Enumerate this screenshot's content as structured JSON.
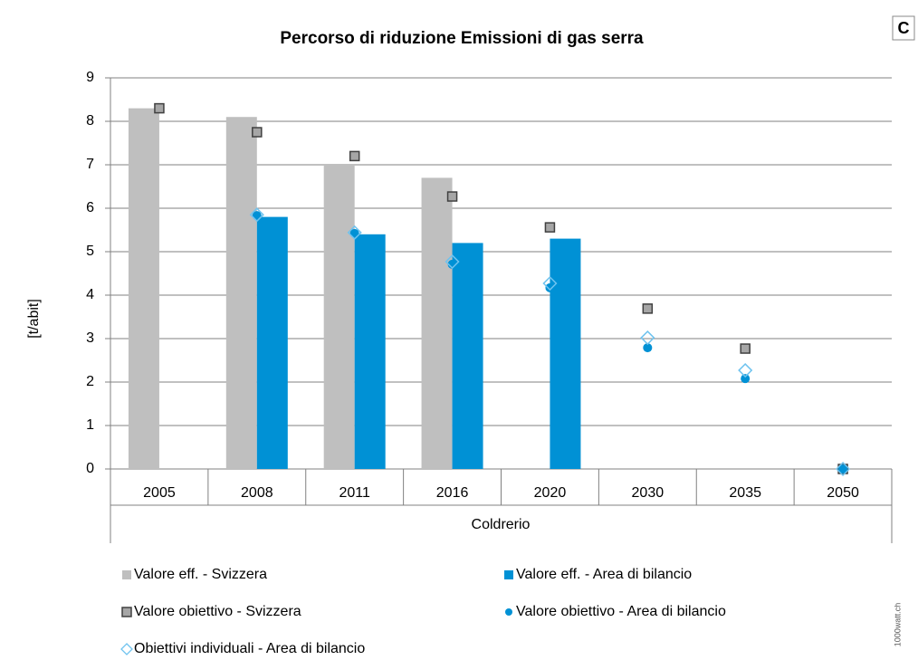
{
  "chart_data": {
    "type": "bar",
    "title": "Percorso di riduzione Emissioni di gas serra",
    "corner_label": "C",
    "watermark": "1000watt.ch",
    "y_label": "[t/abit]",
    "x_label": "Coldrerio",
    "categories": [
      "2005",
      "2008",
      "2011",
      "2016",
      "2020",
      "2030",
      "2035",
      "2050"
    ],
    "ylim": [
      0,
      9
    ],
    "yticks": [
      0,
      1,
      2,
      3,
      4,
      5,
      6,
      7,
      8,
      9
    ],
    "grid": true,
    "series": [
      {
        "name": "Valore eff. - Svizzera",
        "type": "bar",
        "color": "#bfbfbf",
        "values": [
          8.3,
          8.1,
          7.0,
          6.7,
          null,
          null,
          null,
          null
        ]
      },
      {
        "name": "Valore eff. - Area di bilancio",
        "type": "bar",
        "color": "#0091d5",
        "values": [
          null,
          5.8,
          5.4,
          5.2,
          5.3,
          null,
          null,
          null
        ]
      },
      {
        "name": "Valore obiettivo - Svizzera",
        "type": "scatter",
        "marker": "square",
        "color": "#a6a6a6",
        "values": [
          8.3,
          7.75,
          7.2,
          6.27,
          5.56,
          3.69,
          2.77,
          0
        ]
      },
      {
        "name": "Valore obiettivo - Area di bilancio",
        "type": "scatter",
        "marker": "circle",
        "color": "#0091d5",
        "values": [
          null,
          5.83,
          5.42,
          4.71,
          4.17,
          2.79,
          2.08,
          0
        ]
      },
      {
        "name": "Obiettivi individuali - Area di bilancio",
        "type": "scatter",
        "marker": "diamond",
        "color": "#6fc3ef",
        "values": [
          null,
          5.85,
          5.44,
          4.77,
          4.27,
          3.02,
          2.27,
          0
        ]
      }
    ]
  }
}
